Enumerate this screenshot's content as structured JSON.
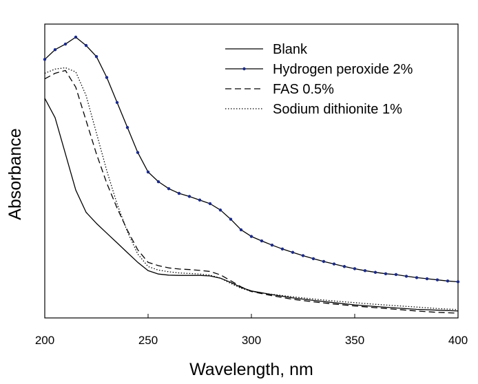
{
  "chart_data": {
    "type": "line",
    "title": "",
    "xlabel": "Wavelength, nm",
    "ylabel": "Absorbance",
    "xlim": [
      200,
      400
    ],
    "ylim": [
      0,
      1
    ],
    "x_ticks": [
      200,
      250,
      300,
      350,
      400
    ],
    "y_ticks": [],
    "grid": false,
    "legend_position": "top-right",
    "series": [
      {
        "name": "Blank",
        "style": "solid",
        "color": "#000000",
        "x": [
          200,
          205,
          210,
          215,
          220,
          225,
          230,
          235,
          240,
          245,
          250,
          255,
          260,
          265,
          270,
          275,
          280,
          285,
          290,
          295,
          300,
          310,
          320,
          330,
          340,
          350,
          360,
          370,
          380,
          390,
          400
        ],
        "values": [
          0.79,
          0.72,
          0.59,
          0.46,
          0.38,
          0.34,
          0.305,
          0.27,
          0.235,
          0.2,
          0.17,
          0.158,
          0.154,
          0.153,
          0.153,
          0.153,
          0.151,
          0.143,
          0.128,
          0.11,
          0.097,
          0.084,
          0.072,
          0.063,
          0.055,
          0.047,
          0.041,
          0.036,
          0.031,
          0.028,
          0.025
        ]
      },
      {
        "name": "Hydrogen peroxide 2%",
        "style": "solid-markers",
        "color": "#000000",
        "marker_color": "#1a2a8c",
        "x": [
          200,
          205,
          210,
          215,
          220,
          225,
          230,
          235,
          240,
          245,
          250,
          255,
          260,
          265,
          270,
          275,
          280,
          285,
          290,
          295,
          300,
          305,
          310,
          315,
          320,
          325,
          330,
          335,
          340,
          345,
          350,
          355,
          360,
          365,
          370,
          375,
          380,
          385,
          390,
          395,
          400
        ],
        "values": [
          0.93,
          0.965,
          0.985,
          1.01,
          0.98,
          0.94,
          0.865,
          0.775,
          0.685,
          0.595,
          0.525,
          0.49,
          0.465,
          0.448,
          0.437,
          0.424,
          0.411,
          0.388,
          0.355,
          0.317,
          0.293,
          0.277,
          0.262,
          0.248,
          0.236,
          0.224,
          0.213,
          0.203,
          0.194,
          0.185,
          0.177,
          0.17,
          0.164,
          0.159,
          0.156,
          0.15,
          0.145,
          0.141,
          0.137,
          0.133,
          0.13
        ]
      },
      {
        "name": "FAS 0.5%",
        "style": "dashed",
        "color": "#000000",
        "x": [
          200,
          205,
          210,
          215,
          220,
          225,
          230,
          235,
          240,
          245,
          250,
          255,
          260,
          265,
          270,
          275,
          280,
          285,
          290,
          295,
          300,
          310,
          320,
          330,
          340,
          350,
          360,
          370,
          380,
          390,
          400
        ],
        "values": [
          0.86,
          0.88,
          0.89,
          0.83,
          0.71,
          0.59,
          0.485,
          0.395,
          0.315,
          0.245,
          0.2,
          0.188,
          0.18,
          0.176,
          0.174,
          0.171,
          0.167,
          0.155,
          0.134,
          0.112,
          0.095,
          0.08,
          0.067,
          0.058,
          0.05,
          0.043,
          0.037,
          0.031,
          0.025,
          0.02,
          0.017
        ]
      },
      {
        "name": "Sodium dithionite 1%",
        "style": "dotted",
        "color": "#000000",
        "x": [
          200,
          205,
          210,
          215,
          220,
          225,
          230,
          235,
          240,
          245,
          250,
          255,
          260,
          265,
          270,
          275,
          280,
          285,
          290,
          295,
          300,
          310,
          320,
          330,
          340,
          350,
          360,
          370,
          380,
          390,
          400
        ],
        "values": [
          0.88,
          0.895,
          0.9,
          0.885,
          0.8,
          0.665,
          0.53,
          0.41,
          0.31,
          0.23,
          0.185,
          0.172,
          0.166,
          0.162,
          0.16,
          0.158,
          0.154,
          0.143,
          0.124,
          0.107,
          0.095,
          0.085,
          0.076,
          0.068,
          0.061,
          0.055,
          0.049,
          0.044,
          0.039,
          0.034,
          0.03
        ]
      }
    ]
  }
}
